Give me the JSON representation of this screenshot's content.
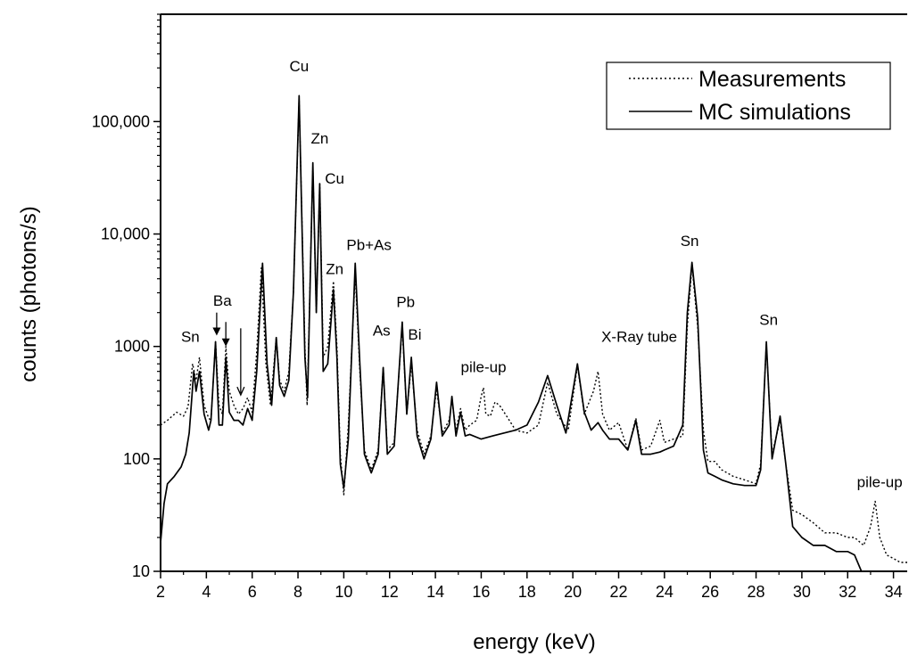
{
  "chart_data": {
    "type": "line",
    "title": "",
    "xlabel": "energy (keV)",
    "ylabel": "counts (photons/s)",
    "xlim": [
      2,
      34.6
    ],
    "ylim": [
      10,
      900000
    ],
    "y_scale": "log",
    "grid": false,
    "legend_position": "top-right",
    "x_ticks": [
      2,
      4,
      6,
      8,
      10,
      12,
      14,
      16,
      18,
      20,
      22,
      24,
      26,
      28,
      30,
      32,
      34
    ],
    "x_tick_labels": [
      "2",
      "4",
      "6",
      "8",
      "10",
      "12",
      "14",
      "16",
      "18",
      "20",
      "22",
      "24",
      "26",
      "28",
      "30",
      "32",
      "34"
    ],
    "y_ticks": [
      10,
      100,
      1000,
      10000,
      100000
    ],
    "y_tick_labels": [
      "10",
      "100",
      "1000",
      "10,000",
      "100,000"
    ],
    "series": [
      {
        "name": "Measurements",
        "style": "dotted",
        "color": "#000000",
        "points": [
          [
            2.0,
            200
          ],
          [
            2.3,
            220
          ],
          [
            2.7,
            260
          ],
          [
            3.0,
            240
          ],
          [
            3.2,
            290
          ],
          [
            3.4,
            700
          ],
          [
            3.55,
            500
          ],
          [
            3.7,
            800
          ],
          [
            3.9,
            300
          ],
          [
            4.1,
            230
          ],
          [
            4.2,
            220
          ],
          [
            4.4,
            1100
          ],
          [
            4.55,
            300
          ],
          [
            4.7,
            250
          ],
          [
            4.85,
            1000
          ],
          [
            5.0,
            400
          ],
          [
            5.2,
            300
          ],
          [
            5.4,
            250
          ],
          [
            5.6,
            280
          ],
          [
            5.8,
            350
          ],
          [
            6.0,
            260
          ],
          [
            6.2,
            900
          ],
          [
            6.4,
            5000
          ],
          [
            6.6,
            700
          ],
          [
            6.8,
            300
          ],
          [
            7.05,
            1200
          ],
          [
            7.2,
            500
          ],
          [
            7.4,
            400
          ],
          [
            7.6,
            600
          ],
          [
            7.8,
            3000
          ],
          [
            8.05,
            160000
          ],
          [
            8.3,
            1000
          ],
          [
            8.4,
            300
          ],
          [
            8.65,
            40000
          ],
          [
            8.8,
            2000
          ],
          [
            8.95,
            28000
          ],
          [
            9.1,
            800
          ],
          [
            9.3,
            1000
          ],
          [
            9.55,
            3800
          ],
          [
            9.7,
            1000
          ],
          [
            9.85,
            110
          ],
          [
            10.0,
            48
          ],
          [
            10.2,
            200
          ],
          [
            10.5,
            4500
          ],
          [
            10.7,
            600
          ],
          [
            10.9,
            120
          ],
          [
            11.2,
            80
          ],
          [
            11.5,
            120
          ],
          [
            11.72,
            650
          ],
          [
            11.9,
            120
          ],
          [
            12.2,
            140
          ],
          [
            12.55,
            1500
          ],
          [
            12.75,
            250
          ],
          [
            12.95,
            700
          ],
          [
            13.2,
            180
          ],
          [
            13.5,
            110
          ],
          [
            13.8,
            160
          ],
          [
            14.05,
            420
          ],
          [
            14.3,
            170
          ],
          [
            14.6,
            220
          ],
          [
            14.72,
            330
          ],
          [
            14.9,
            180
          ],
          [
            15.1,
            280
          ],
          [
            15.3,
            180
          ],
          [
            15.5,
            200
          ],
          [
            15.8,
            220
          ],
          [
            16.0,
            360
          ],
          [
            16.1,
            430
          ],
          [
            16.2,
            250
          ],
          [
            16.4,
            240
          ],
          [
            16.6,
            320
          ],
          [
            16.8,
            300
          ],
          [
            17.0,
            260
          ],
          [
            17.5,
            180
          ],
          [
            18.0,
            170
          ],
          [
            18.5,
            200
          ],
          [
            18.9,
            480
          ],
          [
            19.3,
            250
          ],
          [
            19.8,
            180
          ],
          [
            20.2,
            680
          ],
          [
            20.5,
            250
          ],
          [
            20.9,
            400
          ],
          [
            21.1,
            600
          ],
          [
            21.3,
            250
          ],
          [
            21.6,
            180
          ],
          [
            22.0,
            210
          ],
          [
            22.4,
            120
          ],
          [
            22.75,
            230
          ],
          [
            23.0,
            120
          ],
          [
            23.4,
            130
          ],
          [
            23.8,
            220
          ],
          [
            24.0,
            140
          ],
          [
            24.4,
            150
          ],
          [
            24.8,
            160
          ],
          [
            25.0,
            1500
          ],
          [
            25.2,
            5300
          ],
          [
            25.45,
            1500
          ],
          [
            25.7,
            180
          ],
          [
            25.9,
            95
          ],
          [
            26.2,
            95
          ],
          [
            26.5,
            80
          ],
          [
            27.0,
            70
          ],
          [
            27.5,
            65
          ],
          [
            28.0,
            60
          ],
          [
            28.2,
            90
          ],
          [
            28.45,
            1050
          ],
          [
            28.7,
            110
          ],
          [
            29.05,
            220
          ],
          [
            29.3,
            90
          ],
          [
            29.6,
            35
          ],
          [
            30.0,
            32
          ],
          [
            30.5,
            27
          ],
          [
            31.0,
            22
          ],
          [
            31.5,
            22
          ],
          [
            32.0,
            20
          ],
          [
            32.3,
            20
          ],
          [
            32.7,
            17
          ],
          [
            33.0,
            25
          ],
          [
            33.2,
            42
          ],
          [
            33.4,
            20
          ],
          [
            33.7,
            14
          ],
          [
            34.0,
            13
          ],
          [
            34.3,
            12
          ],
          [
            34.6,
            12
          ]
        ]
      },
      {
        "name": "MC simulations",
        "style": "solid",
        "color": "#000000",
        "points": [
          [
            2.0,
            18
          ],
          [
            2.15,
            40
          ],
          [
            2.3,
            60
          ],
          [
            2.6,
            70
          ],
          [
            2.9,
            85
          ],
          [
            3.1,
            110
          ],
          [
            3.25,
            170
          ],
          [
            3.45,
            600
          ],
          [
            3.55,
            400
          ],
          [
            3.7,
            600
          ],
          [
            3.9,
            250
          ],
          [
            4.1,
            180
          ],
          [
            4.2,
            220
          ],
          [
            4.4,
            1100
          ],
          [
            4.55,
            200
          ],
          [
            4.7,
            200
          ],
          [
            4.85,
            800
          ],
          [
            5.0,
            260
          ],
          [
            5.2,
            220
          ],
          [
            5.4,
            220
          ],
          [
            5.6,
            200
          ],
          [
            5.8,
            280
          ],
          [
            6.0,
            220
          ],
          [
            6.2,
            600
          ],
          [
            6.45,
            5500
          ],
          [
            6.65,
            700
          ],
          [
            6.85,
            300
          ],
          [
            7.05,
            1200
          ],
          [
            7.2,
            450
          ],
          [
            7.4,
            360
          ],
          [
            7.6,
            500
          ],
          [
            7.8,
            3000
          ],
          [
            8.05,
            170000
          ],
          [
            8.3,
            800
          ],
          [
            8.42,
            350
          ],
          [
            8.65,
            43000
          ],
          [
            8.8,
            2000
          ],
          [
            8.95,
            28000
          ],
          [
            9.1,
            600
          ],
          [
            9.3,
            700
          ],
          [
            9.55,
            3200
          ],
          [
            9.7,
            800
          ],
          [
            9.85,
            90
          ],
          [
            10.0,
            55
          ],
          [
            10.2,
            150
          ],
          [
            10.5,
            5500
          ],
          [
            10.7,
            700
          ],
          [
            10.9,
            110
          ],
          [
            11.2,
            75
          ],
          [
            11.5,
            110
          ],
          [
            11.72,
            650
          ],
          [
            11.9,
            110
          ],
          [
            12.2,
            130
          ],
          [
            12.55,
            1650
          ],
          [
            12.75,
            250
          ],
          [
            12.95,
            800
          ],
          [
            13.2,
            160
          ],
          [
            13.5,
            100
          ],
          [
            13.8,
            150
          ],
          [
            14.05,
            480
          ],
          [
            14.3,
            160
          ],
          [
            14.6,
            200
          ],
          [
            14.72,
            360
          ],
          [
            14.9,
            160
          ],
          [
            15.1,
            260
          ],
          [
            15.3,
            160
          ],
          [
            15.5,
            165
          ],
          [
            16.0,
            150
          ],
          [
            16.5,
            160
          ],
          [
            17.0,
            170
          ],
          [
            17.5,
            180
          ],
          [
            18.0,
            200
          ],
          [
            18.5,
            320
          ],
          [
            18.9,
            550
          ],
          [
            19.3,
            300
          ],
          [
            19.7,
            170
          ],
          [
            20.2,
            700
          ],
          [
            20.5,
            260
          ],
          [
            20.8,
            180
          ],
          [
            21.1,
            210
          ],
          [
            21.3,
            180
          ],
          [
            21.6,
            150
          ],
          [
            22.0,
            150
          ],
          [
            22.4,
            120
          ],
          [
            22.75,
            220
          ],
          [
            23.0,
            110
          ],
          [
            23.4,
            110
          ],
          [
            23.8,
            115
          ],
          [
            24.0,
            120
          ],
          [
            24.4,
            130
          ],
          [
            24.8,
            200
          ],
          [
            25.0,
            2000
          ],
          [
            25.2,
            5600
          ],
          [
            25.45,
            1800
          ],
          [
            25.7,
            120
          ],
          [
            25.9,
            75
          ],
          [
            26.2,
            70
          ],
          [
            26.5,
            65
          ],
          [
            27.0,
            60
          ],
          [
            27.5,
            58
          ],
          [
            28.0,
            58
          ],
          [
            28.2,
            80
          ],
          [
            28.45,
            1100
          ],
          [
            28.7,
            100
          ],
          [
            29.05,
            240
          ],
          [
            29.3,
            90
          ],
          [
            29.6,
            25
          ],
          [
            30.0,
            20
          ],
          [
            30.5,
            17
          ],
          [
            31.0,
            17
          ],
          [
            31.5,
            15
          ],
          [
            32.0,
            15
          ],
          [
            32.3,
            14
          ],
          [
            32.6,
            10
          ],
          [
            32.9,
            8
          ],
          [
            33.2,
            8
          ],
          [
            34.6,
            8
          ]
        ]
      }
    ],
    "annotations": [
      {
        "text": "Cu",
        "x": 8.05,
        "y": 280000
      },
      {
        "text": "Zn",
        "x": 8.95,
        "y": 64000
      },
      {
        "text": "Cu",
        "x": 9.6,
        "y": 28000
      },
      {
        "text": "Pb+As",
        "x": 11.1,
        "y": 7200
      },
      {
        "text": "Zn",
        "x": 9.6,
        "y": 4400
      },
      {
        "text": "Sn",
        "x": 25.1,
        "y": 7800
      },
      {
        "text": "Ba",
        "x": 4.7,
        "y": 2300
      },
      {
        "text": "Sn",
        "x": 3.3,
        "y": 1100
      },
      {
        "text": "Pb",
        "x": 12.7,
        "y": 2250
      },
      {
        "text": "As",
        "x": 11.65,
        "y": 1250
      },
      {
        "text": "Bi",
        "x": 13.1,
        "y": 1150
      },
      {
        "text": "pile-up",
        "x": 16.1,
        "y": 590
      },
      {
        "text": "X-Ray tube",
        "x": 22.9,
        "y": 1100
      },
      {
        "text": "Sn",
        "x": 28.55,
        "y": 1550
      },
      {
        "text": "pile-up",
        "x": 33.4,
        "y": 56
      }
    ],
    "arrows": [
      {
        "x": 4.45,
        "y_from": 2000,
        "y_to": 1250,
        "head": "filled"
      },
      {
        "x": 4.85,
        "y_from": 1650,
        "y_to": 1000,
        "head": "filled"
      },
      {
        "x": 5.5,
        "y_from": 1450,
        "y_to": 370,
        "head": "open"
      }
    ]
  }
}
